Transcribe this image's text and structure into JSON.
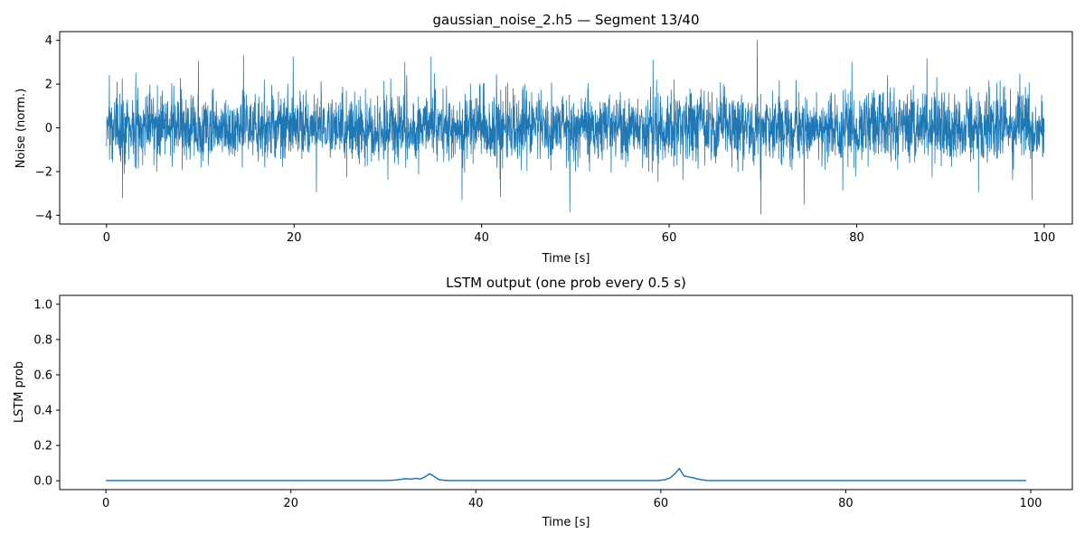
{
  "chart_data": [
    {
      "type": "line",
      "title": "gaussian_noise_2.h5 — Segment 13/40",
      "xlabel": "Time [s]",
      "ylabel": "Noise (norm.)",
      "xlim": [
        -5,
        103
      ],
      "ylim": [
        -4.4,
        4.4
      ],
      "xticks": [
        0,
        20,
        40,
        60,
        80,
        100
      ],
      "yticks": [
        -4,
        -2,
        0,
        2,
        4
      ],
      "color": "#1f77b4",
      "x_range": [
        0,
        100
      ],
      "distribution": "gaussian",
      "std": 0.8,
      "extremes": [
        {
          "x": 69.4,
          "y": 4.0
        },
        {
          "x": 69.8,
          "y": -3.95
        },
        {
          "x": 49.4,
          "y": -3.85
        },
        {
          "x": 74.4,
          "y": -3.5
        },
        {
          "x": 37.9,
          "y": -3.3
        },
        {
          "x": 98.7,
          "y": -3.3
        },
        {
          "x": 14.6,
          "y": 3.3
        },
        {
          "x": 34.6,
          "y": 3.25
        },
        {
          "x": 1.7,
          "y": -3.2
        },
        {
          "x": 19.9,
          "y": 3.25
        },
        {
          "x": 58.3,
          "y": 3.1
        },
        {
          "x": 87.5,
          "y": 3.15
        },
        {
          "x": 9.8,
          "y": 3.05
        },
        {
          "x": 42.0,
          "y": -3.15
        },
        {
          "x": 79.5,
          "y": 3.0
        },
        {
          "x": 93.0,
          "y": -2.95
        },
        {
          "x": 0.3,
          "y": 2.4
        }
      ]
    },
    {
      "type": "line",
      "title": "LSTM output (one prob every 0.5 s)",
      "xlabel": "Time [s]",
      "ylabel": "LSTM prob",
      "xlim": [
        -5,
        104.5
      ],
      "ylim": [
        -0.05,
        1.05
      ],
      "xticks": [
        0,
        20,
        40,
        60,
        80,
        100
      ],
      "yticks": [
        0.0,
        0.2,
        0.4,
        0.6,
        0.8,
        1.0
      ],
      "color": "#1f77b4",
      "x_step": 0.5,
      "x_range": [
        0,
        99.5
      ],
      "points": [
        [
          0,
          0.001
        ],
        [
          30,
          0.001
        ],
        [
          31.0,
          0.003
        ],
        [
          31.5,
          0.005
        ],
        [
          32.0,
          0.009
        ],
        [
          32.5,
          0.012
        ],
        [
          33.0,
          0.009
        ],
        [
          33.5,
          0.014
        ],
        [
          34.0,
          0.01
        ],
        [
          34.5,
          0.022
        ],
        [
          35.0,
          0.04
        ],
        [
          35.5,
          0.024
        ],
        [
          36.0,
          0.007
        ],
        [
          36.5,
          0.003
        ],
        [
          37.0,
          0.001
        ],
        [
          59.5,
          0.001
        ],
        [
          60.0,
          0.003
        ],
        [
          60.5,
          0.007
        ],
        [
          61.0,
          0.016
        ],
        [
          61.5,
          0.038
        ],
        [
          62.0,
          0.07
        ],
        [
          62.5,
          0.028
        ],
        [
          63.0,
          0.022
        ],
        [
          63.5,
          0.017
        ],
        [
          64.0,
          0.01
        ],
        [
          64.5,
          0.005
        ],
        [
          65.0,
          0.002
        ],
        [
          65.5,
          0.001
        ],
        [
          99.5,
          0.001
        ]
      ]
    }
  ]
}
